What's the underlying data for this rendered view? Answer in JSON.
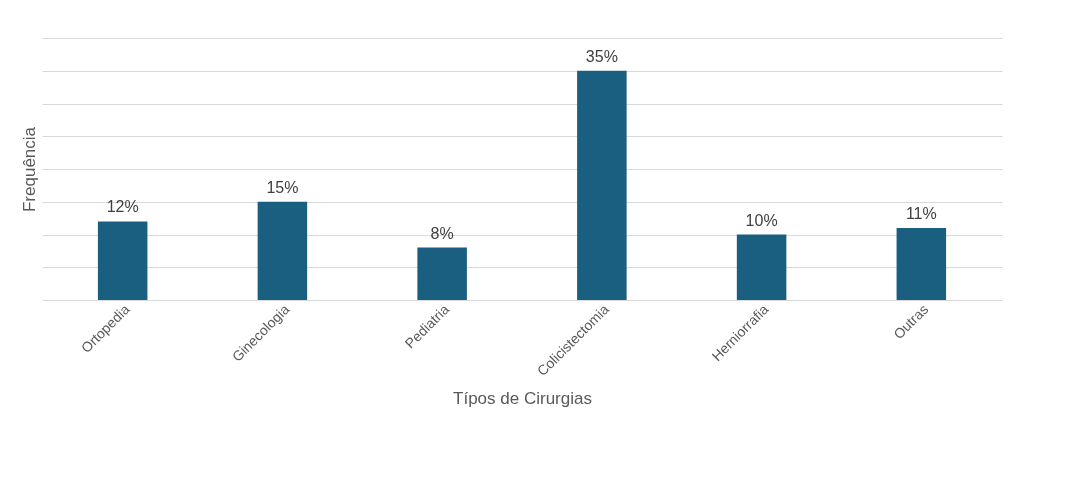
{
  "chart_data": {
    "type": "bar",
    "xlabel": "Típos de Cirurgias",
    "ylabel": "Frequência",
    "categories": [
      "Ortopedia",
      "Ginecologia",
      "Pediatria",
      "Colicistectomia",
      "Herniorrafia",
      "Outras"
    ],
    "values": [
      12,
      15,
      8,
      35,
      10,
      11
    ],
    "value_labels": [
      "12%",
      "15%",
      "8%",
      "35%",
      "10%",
      "11%"
    ],
    "color": "#1a5f80",
    "ylim": [
      0,
      40
    ],
    "yticks": [
      {
        "value": 0,
        "label": null
      },
      {
        "value": 5,
        "label": null
      },
      {
        "value": 10,
        "label": null
      },
      {
        "value": 15,
        "label": null
      },
      {
        "value": 20,
        "label": null
      },
      {
        "value": 25,
        "label": null
      },
      {
        "value": 30,
        "label": null
      },
      {
        "value": 35,
        "label": null
      },
      {
        "value": 40,
        "label": null
      }
    ],
    "grid": "y",
    "tick_labels": "x"
  }
}
